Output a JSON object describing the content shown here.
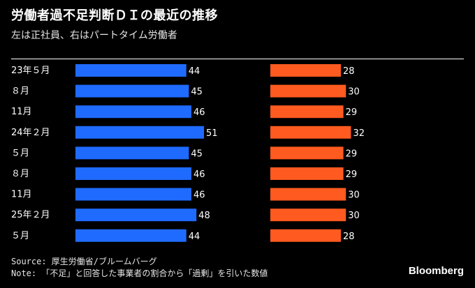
{
  "title": "労働者過不足判断ＤＩの最近の推移",
  "subtitle": "左は正社員、右はパートタイム労働者",
  "source": "Source: 厚生労働省/ブルームバーグ",
  "note": "Note: 「不足」と回答した事業者の割合から「過剰」を引いた数値",
  "logo": "Bloomberg",
  "colors": {
    "left": "#1f6bff",
    "right": "#ff5a1f"
  },
  "chart_data": {
    "type": "bar",
    "orientation": "horizontal",
    "categories": [
      "23年５月",
      "８月",
      "11月",
      "24年２月",
      "５月",
      "８月",
      "11月",
      "25年２月",
      "５月"
    ],
    "series": [
      {
        "values": [
          44,
          45,
          46,
          51,
          45,
          46,
          46,
          48,
          44
        ]
      },
      {
        "values": [
          28,
          30,
          29,
          32,
          29,
          29,
          30,
          30,
          28
        ]
      }
    ],
    "xlim": [
      0,
      51
    ]
  }
}
